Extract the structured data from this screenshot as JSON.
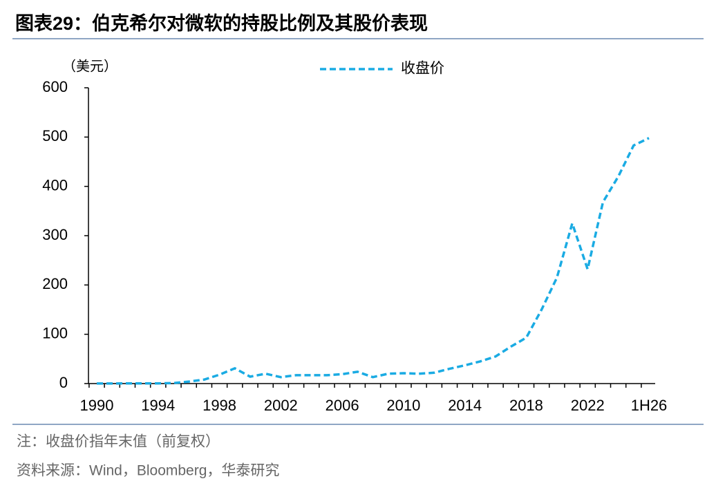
{
  "chart_data": {
    "type": "line",
    "title": "图表29：伯克希尔对微软的持股比例及其股价表现",
    "y_label": "（美元）",
    "categories": [
      "1990",
      null,
      null,
      null,
      "1994",
      null,
      null,
      null,
      "1998",
      null,
      null,
      null,
      "2002",
      null,
      null,
      null,
      "2006",
      null,
      null,
      null,
      "2010",
      null,
      null,
      null,
      "2014",
      null,
      null,
      null,
      "2018",
      null,
      null,
      null,
      "2022",
      null,
      null,
      null,
      "1H26"
    ],
    "series": [
      {
        "name": "收盘价",
        "color": "#1aabe3",
        "values": [
          0.1,
          0.2,
          0.3,
          0.3,
          0.4,
          1,
          4,
          8,
          18,
          31,
          14,
          20,
          13,
          17,
          17,
          17,
          19,
          24,
          13,
          20,
          21,
          20,
          22,
          30,
          37,
          45,
          55,
          75,
          93,
          150,
          215,
          325,
          232,
          368,
          420,
          483,
          498
        ]
      }
    ],
    "ylim": [
      0,
      600
    ],
    "yticks": [
      0,
      100,
      200,
      300,
      400,
      500,
      600
    ],
    "legend": "top",
    "notes": [
      "注：收盘价指年末值（前复权）",
      "资料来源：Wind，Bloomberg，华泰研究"
    ]
  }
}
